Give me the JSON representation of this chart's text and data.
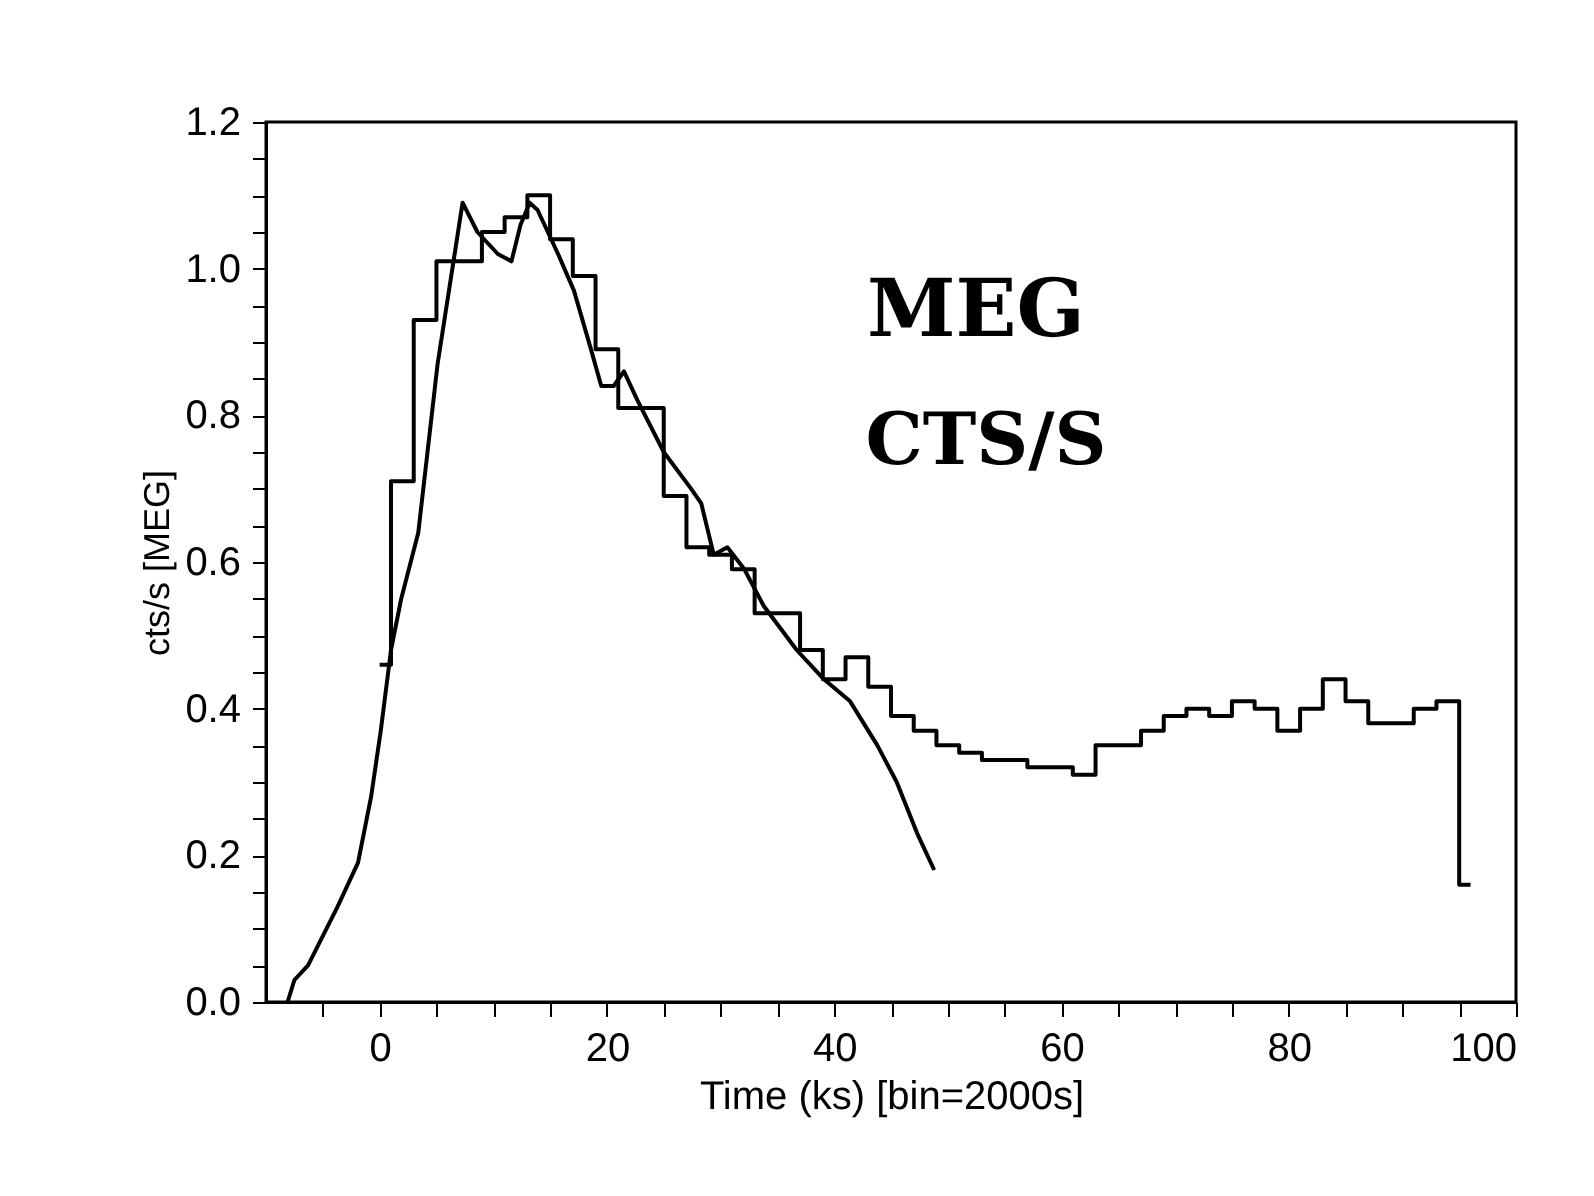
{
  "chart_data": {
    "type": "histogram",
    "xlabel": "Time (ks) [bin=2000s]",
    "ylabel": "cts/s [MEG]",
    "annotations": [
      "MEG",
      "CTS/S"
    ],
    "bins": [
      0,
      1,
      3,
      5,
      7,
      9,
      11,
      13,
      15,
      17,
      19,
      21,
      23,
      25,
      27,
      29,
      31,
      33,
      35,
      37,
      39,
      41,
      43,
      45,
      47,
      49,
      51,
      53,
      55,
      57,
      59,
      61,
      63,
      65,
      67,
      69,
      71,
      73,
      75,
      77,
      79,
      81,
      83,
      85,
      87,
      89,
      91,
      93,
      95,
      96
    ],
    "values": [
      0.46,
      0.71,
      0.93,
      1.01,
      1.01,
      1.05,
      1.07,
      1.1,
      1.04,
      0.99,
      0.89,
      0.81,
      0.81,
      0.69,
      0.62,
      0.61,
      0.59,
      0.53,
      0.53,
      0.48,
      0.44,
      0.47,
      0.43,
      0.39,
      0.37,
      0.35,
      0.34,
      0.33,
      0.33,
      0.32,
      0.32,
      0.31,
      0.35,
      0.35,
      0.37,
      0.39,
      0.4,
      0.39,
      0.41,
      0.4,
      0.37,
      0.4,
      0.44,
      0.41,
      0.38,
      0.38,
      0.4,
      0.41,
      0.16
    ],
    "color": "#000000",
    "series": [
      {
        "type": "line",
        "color": "#000000",
        "x": [
          -8.1,
          -7.5,
          -6.3,
          -3.7,
          -1.9,
          -0.75,
          0.1,
          1.0,
          1.9,
          3.4,
          5.1,
          7.3,
          8.6,
          10.4,
          11.6,
          12.4,
          13.2,
          13.9,
          15.7,
          17.1,
          18.6,
          19.5,
          20.6,
          21.5,
          22.7,
          25.0,
          27.4,
          28.3,
          29.4,
          30.6,
          32.1,
          33.8,
          36.7,
          39.1,
          41.4,
          43.8,
          45.5,
          47.3,
          48.8
        ],
        "values": [
          0.0,
          0.03,
          0.05,
          0.13,
          0.19,
          0.28,
          0.37,
          0.48,
          0.55,
          0.64,
          0.87,
          1.09,
          1.05,
          1.02,
          1.01,
          1.06,
          1.09,
          1.08,
          1.02,
          0.97,
          0.89,
          0.84,
          0.84,
          0.86,
          0.82,
          0.75,
          0.7,
          0.68,
          0.61,
          0.62,
          0.59,
          0.54,
          0.48,
          0.44,
          0.41,
          0.35,
          0.3,
          0.23,
          0.18
        ]
      }
    ],
    "xlim": [
      -10,
      100
    ],
    "ylim": [
      0,
      1.2
    ],
    "xticks": [
      {
        "value": -5,
        "label": null
      },
      0,
      {
        "value": 5,
        "label": null
      },
      {
        "value": 10,
        "label": null
      },
      {
        "value": 15,
        "label": null
      },
      20,
      {
        "value": 25,
        "label": null
      },
      {
        "value": 30,
        "label": null
      },
      {
        "value": 35,
        "label": null
      },
      40,
      {
        "value": 45,
        "label": null
      },
      {
        "value": 50,
        "label": null
      },
      {
        "value": 55,
        "label": null
      },
      60,
      {
        "value": 65,
        "label": null
      },
      {
        "value": 70,
        "label": null
      },
      {
        "value": 75,
        "label": null
      },
      80,
      {
        "value": 85,
        "label": null
      },
      {
        "value": 90,
        "label": null
      },
      {
        "value": 95,
        "label": null
      },
      100
    ],
    "yticks": [
      {
        "value": 0,
        "label": "0.0"
      },
      {
        "value": 0.05,
        "label": null
      },
      {
        "value": 0.1,
        "label": null
      },
      {
        "value": 0.15,
        "label": null
      },
      {
        "value": 0.2,
        "label": "0.2"
      },
      {
        "value": 0.25,
        "label": null
      },
      {
        "value": 0.3,
        "label": null
      },
      {
        "value": 0.35,
        "label": null
      },
      {
        "value": 0.4,
        "label": "0.4"
      },
      {
        "value": 0.45,
        "label": null
      },
      {
        "value": 0.5,
        "label": null
      },
      {
        "value": 0.55,
        "label": null
      },
      {
        "value": 0.6,
        "label": "0.6"
      },
      {
        "value": 0.65,
        "label": null
      },
      {
        "value": 0.7,
        "label": null
      },
      {
        "value": 0.75,
        "label": null
      },
      {
        "value": 0.8,
        "label": "0.8"
      },
      {
        "value": 0.85,
        "label": null
      },
      {
        "value": 0.9,
        "label": null
      },
      {
        "value": 0.95,
        "label": null
      },
      {
        "value": 1.0,
        "label": "1.0"
      },
      {
        "value": 1.05,
        "label": null
      },
      {
        "value": 1.1,
        "label": null
      },
      {
        "value": 1.15,
        "label": null
      },
      {
        "value": 1.2,
        "label": "1.2"
      }
    ],
    "grid": false
  }
}
